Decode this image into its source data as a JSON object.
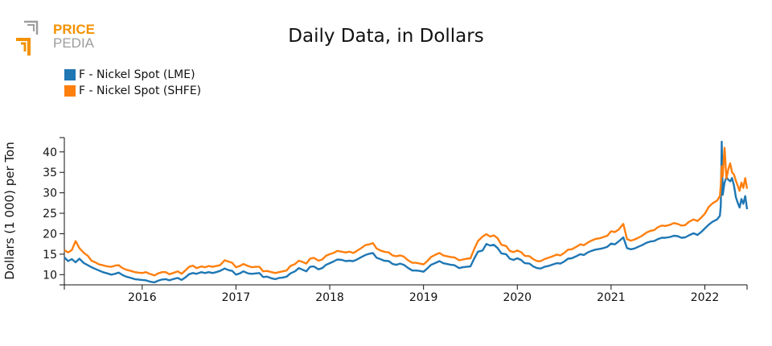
{
  "logo": {
    "line1": "PRICE",
    "line2": "PEDIA"
  },
  "colors": {
    "lme": "#1f77b4",
    "shfe": "#ff7f0e",
    "logo_orange": "#f39200",
    "logo_gray": "#9d9d9c"
  },
  "chart_data": {
    "type": "line",
    "title": "Daily Data, in Dollars",
    "xlabel": "",
    "ylabel": "Dollars (1 000) per Ton",
    "xlim": [
      2015.17,
      2022.45
    ],
    "ylim": [
      7.5,
      43.5
    ],
    "yticks": [
      10,
      15,
      20,
      25,
      30,
      35,
      40
    ],
    "xticks": [
      {
        "label": "2016",
        "pos": 2016.0
      },
      {
        "label": "2017",
        "pos": 2017.0
      },
      {
        "label": "2018",
        "pos": 2018.0
      },
      {
        "label": "2019",
        "pos": 2019.0
      },
      {
        "label": "2020",
        "pos": 2020.0
      },
      {
        "label": "2021",
        "pos": 2021.0
      },
      {
        "label": "2022",
        "pos": 2022.0
      }
    ],
    "legend_position": "top-left",
    "series": [
      {
        "name": "F - Nickel Spot (LME)",
        "x": [
          2015.17,
          2015.21,
          2015.25,
          2015.29,
          2015.33,
          2015.38,
          2015.42,
          2015.46,
          2015.5,
          2015.54,
          2015.58,
          2015.63,
          2015.67,
          2015.71,
          2015.75,
          2015.79,
          2015.83,
          2015.88,
          2015.92,
          2015.96,
          2016.0,
          2016.04,
          2016.08,
          2016.13,
          2016.17,
          2016.21,
          2016.25,
          2016.29,
          2016.33,
          2016.38,
          2016.42,
          2016.46,
          2016.5,
          2016.54,
          2016.58,
          2016.63,
          2016.67,
          2016.71,
          2016.75,
          2016.79,
          2016.83,
          2016.88,
          2016.92,
          2016.96,
          2017.0,
          2017.04,
          2017.08,
          2017.13,
          2017.17,
          2017.21,
          2017.25,
          2017.29,
          2017.33,
          2017.38,
          2017.42,
          2017.46,
          2017.5,
          2017.54,
          2017.58,
          2017.63,
          2017.67,
          2017.71,
          2017.75,
          2017.79,
          2017.83,
          2017.88,
          2017.92,
          2017.96,
          2018.0,
          2018.04,
          2018.08,
          2018.13,
          2018.17,
          2018.21,
          2018.25,
          2018.29,
          2018.33,
          2018.38,
          2018.42,
          2018.46,
          2018.5,
          2018.54,
          2018.58,
          2018.63,
          2018.67,
          2018.71,
          2018.75,
          2018.79,
          2018.83,
          2018.88,
          2018.92,
          2018.96,
          2019.0,
          2019.04,
          2019.08,
          2019.13,
          2019.17,
          2019.21,
          2019.25,
          2019.29,
          2019.33,
          2019.38,
          2019.42,
          2019.46,
          2019.5,
          2019.54,
          2019.58,
          2019.63,
          2019.67,
          2019.71,
          2019.75,
          2019.79,
          2019.83,
          2019.88,
          2019.92,
          2019.96,
          2020.0,
          2020.04,
          2020.08,
          2020.13,
          2020.17,
          2020.21,
          2020.25,
          2020.29,
          2020.33,
          2020.38,
          2020.42,
          2020.46,
          2020.5,
          2020.54,
          2020.58,
          2020.63,
          2020.67,
          2020.71,
          2020.75,
          2020.79,
          2020.83,
          2020.88,
          2020.92,
          2020.96,
          2021.0,
          2021.04,
          2021.08,
          2021.13,
          2021.17,
          2021.21,
          2021.25,
          2021.29,
          2021.33,
          2021.38,
          2021.42,
          2021.46,
          2021.5,
          2021.54,
          2021.58,
          2021.63,
          2021.67,
          2021.71,
          2021.75,
          2021.79,
          2021.83,
          2021.88,
          2021.92,
          2021.96,
          2022.0,
          2022.04,
          2022.08,
          2022.13,
          2022.16,
          2022.17,
          2022.18,
          2022.19,
          2022.21,
          2022.23,
          2022.25,
          2022.27,
          2022.29,
          2022.31,
          2022.33,
          2022.35,
          2022.37,
          2022.39,
          2022.41,
          2022.43,
          2022.45
        ],
        "values": [
          14.2,
          13.3,
          13.8,
          13.0,
          13.9,
          12.8,
          12.3,
          11.8,
          11.4,
          11.0,
          10.6,
          10.3,
          10.0,
          10.2,
          10.5,
          9.9,
          9.5,
          9.2,
          8.9,
          8.8,
          8.7,
          8.6,
          8.3,
          8.1,
          8.5,
          8.8,
          8.9,
          8.6,
          8.9,
          9.2,
          8.7,
          9.3,
          10.1,
          10.4,
          10.2,
          10.6,
          10.4,
          10.6,
          10.4,
          10.6,
          10.9,
          11.5,
          11.1,
          10.9,
          10.0,
          10.3,
          10.8,
          10.3,
          10.2,
          10.3,
          10.4,
          9.4,
          9.5,
          9.1,
          8.9,
          9.2,
          9.3,
          9.5,
          10.3,
          10.8,
          11.6,
          11.2,
          10.8,
          11.9,
          12.0,
          11.3,
          11.6,
          12.4,
          12.8,
          13.2,
          13.7,
          13.6,
          13.3,
          13.4,
          13.3,
          13.7,
          14.2,
          14.8,
          15.1,
          15.3,
          14.1,
          13.8,
          13.4,
          13.3,
          12.6,
          12.4,
          12.7,
          12.4,
          11.7,
          11.0,
          11.0,
          10.9,
          10.7,
          11.5,
          12.4,
          12.9,
          13.3,
          12.8,
          12.6,
          12.4,
          12.3,
          11.6,
          11.8,
          11.9,
          12.0,
          13.9,
          15.6,
          15.9,
          17.5,
          17.1,
          17.3,
          16.5,
          15.2,
          15.0,
          13.9,
          13.6,
          14.0,
          13.6,
          12.8,
          12.7,
          12.0,
          11.6,
          11.5,
          11.9,
          12.1,
          12.5,
          12.8,
          12.7,
          13.2,
          13.9,
          14.0,
          14.5,
          15.0,
          14.8,
          15.4,
          15.8,
          16.1,
          16.3,
          16.5,
          16.8,
          17.6,
          17.4,
          18.1,
          19.1,
          16.5,
          16.2,
          16.4,
          16.8,
          17.2,
          17.8,
          18.1,
          18.2,
          18.7,
          19.0,
          19.0,
          19.2,
          19.5,
          19.4,
          19.0,
          19.1,
          19.6,
          20.1,
          19.7,
          20.4,
          21.3,
          22.2,
          22.9,
          23.5,
          24.4,
          26.8,
          42.5,
          29.5,
          32.5,
          33.8,
          33.2,
          32.8,
          33.6,
          31.8,
          29.0,
          27.6,
          26.4,
          28.5,
          27.3,
          29.2,
          26.0
        ]
      },
      {
        "name": "F - Nickel Spot (SHFE)",
        "x": [
          2015.17,
          2015.21,
          2015.25,
          2015.29,
          2015.33,
          2015.38,
          2015.42,
          2015.46,
          2015.5,
          2015.54,
          2015.58,
          2015.63,
          2015.67,
          2015.71,
          2015.75,
          2015.79,
          2015.83,
          2015.88,
          2015.92,
          2015.96,
          2016.0,
          2016.04,
          2016.08,
          2016.13,
          2016.17,
          2016.21,
          2016.25,
          2016.29,
          2016.33,
          2016.38,
          2016.42,
          2016.46,
          2016.5,
          2016.54,
          2016.58,
          2016.63,
          2016.67,
          2016.71,
          2016.75,
          2016.79,
          2016.83,
          2016.88,
          2016.92,
          2016.96,
          2017.0,
          2017.04,
          2017.08,
          2017.13,
          2017.17,
          2017.21,
          2017.25,
          2017.29,
          2017.33,
          2017.38,
          2017.42,
          2017.46,
          2017.5,
          2017.54,
          2017.58,
          2017.63,
          2017.67,
          2017.71,
          2017.75,
          2017.79,
          2017.83,
          2017.88,
          2017.92,
          2017.96,
          2018.0,
          2018.04,
          2018.08,
          2018.13,
          2018.17,
          2018.21,
          2018.25,
          2018.29,
          2018.33,
          2018.38,
          2018.42,
          2018.46,
          2018.5,
          2018.54,
          2018.58,
          2018.63,
          2018.67,
          2018.71,
          2018.75,
          2018.79,
          2018.83,
          2018.88,
          2018.92,
          2018.96,
          2019.0,
          2019.04,
          2019.08,
          2019.13,
          2019.17,
          2019.21,
          2019.25,
          2019.29,
          2019.33,
          2019.38,
          2019.42,
          2019.46,
          2019.5,
          2019.54,
          2019.58,
          2019.63,
          2019.67,
          2019.71,
          2019.75,
          2019.79,
          2019.83,
          2019.88,
          2019.92,
          2019.96,
          2020.0,
          2020.04,
          2020.08,
          2020.13,
          2020.17,
          2020.21,
          2020.25,
          2020.29,
          2020.33,
          2020.38,
          2020.42,
          2020.46,
          2020.5,
          2020.54,
          2020.58,
          2020.63,
          2020.67,
          2020.71,
          2020.75,
          2020.79,
          2020.83,
          2020.88,
          2020.92,
          2020.96,
          2021.0,
          2021.04,
          2021.08,
          2021.13,
          2021.17,
          2021.21,
          2021.25,
          2021.29,
          2021.33,
          2021.38,
          2021.42,
          2021.46,
          2021.5,
          2021.54,
          2021.58,
          2021.63,
          2021.67,
          2021.71,
          2021.75,
          2021.79,
          2021.83,
          2021.88,
          2021.92,
          2021.96,
          2022.0,
          2022.04,
          2022.08,
          2022.13,
          2022.16,
          2022.17,
          2022.18,
          2022.19,
          2022.21,
          2022.23,
          2022.25,
          2022.27,
          2022.29,
          2022.31,
          2022.33,
          2022.35,
          2022.37,
          2022.39,
          2022.41,
          2022.43,
          2022.45
        ],
        "values": [
          16.0,
          15.4,
          16.0,
          18.2,
          16.5,
          15.3,
          14.6,
          13.4,
          13.0,
          12.5,
          12.3,
          12.0,
          11.9,
          12.2,
          12.3,
          11.6,
          11.2,
          10.9,
          10.6,
          10.5,
          10.4,
          10.6,
          10.2,
          9.8,
          10.3,
          10.6,
          10.6,
          10.1,
          10.4,
          10.8,
          10.2,
          11.0,
          11.9,
          12.2,
          11.6,
          12.0,
          11.8,
          12.1,
          11.9,
          12.1,
          12.3,
          13.5,
          13.2,
          12.9,
          11.8,
          12.1,
          12.6,
          12.1,
          11.8,
          11.9,
          11.9,
          10.8,
          10.9,
          10.6,
          10.4,
          10.6,
          10.8,
          11.0,
          12.1,
          12.6,
          13.4,
          13.1,
          12.7,
          13.9,
          14.1,
          13.4,
          13.7,
          14.6,
          15.0,
          15.3,
          15.8,
          15.6,
          15.4,
          15.6,
          15.3,
          15.8,
          16.4,
          17.2,
          17.4,
          17.7,
          16.4,
          15.9,
          15.6,
          15.4,
          14.7,
          14.5,
          14.7,
          14.4,
          13.6,
          12.9,
          12.9,
          12.7,
          12.5,
          13.3,
          14.3,
          14.9,
          15.3,
          14.7,
          14.5,
          14.3,
          14.2,
          13.5,
          13.7,
          13.9,
          14.0,
          16.2,
          18.2,
          19.3,
          19.9,
          19.3,
          19.6,
          18.9,
          17.3,
          17.0,
          15.8,
          15.5,
          15.9,
          15.5,
          14.6,
          14.5,
          13.8,
          13.3,
          13.3,
          13.8,
          14.1,
          14.5,
          14.9,
          14.7,
          15.3,
          16.1,
          16.2,
          16.8,
          17.4,
          17.2,
          17.8,
          18.3,
          18.7,
          18.9,
          19.2,
          19.5,
          20.6,
          20.4,
          21.0,
          22.4,
          18.7,
          18.3,
          18.6,
          19.0,
          19.5,
          20.3,
          20.7,
          20.9,
          21.6,
          22.0,
          21.9,
          22.2,
          22.6,
          22.4,
          22.0,
          22.1,
          22.9,
          23.5,
          23.1,
          23.9,
          24.9,
          26.5,
          27.4,
          28.1,
          29.2,
          31.8,
          36.5,
          34.0,
          41.0,
          33.5,
          35.8,
          37.2,
          35.0,
          34.5,
          33.0,
          31.8,
          30.5,
          32.5,
          31.2,
          33.6,
          31.0
        ]
      }
    ]
  }
}
